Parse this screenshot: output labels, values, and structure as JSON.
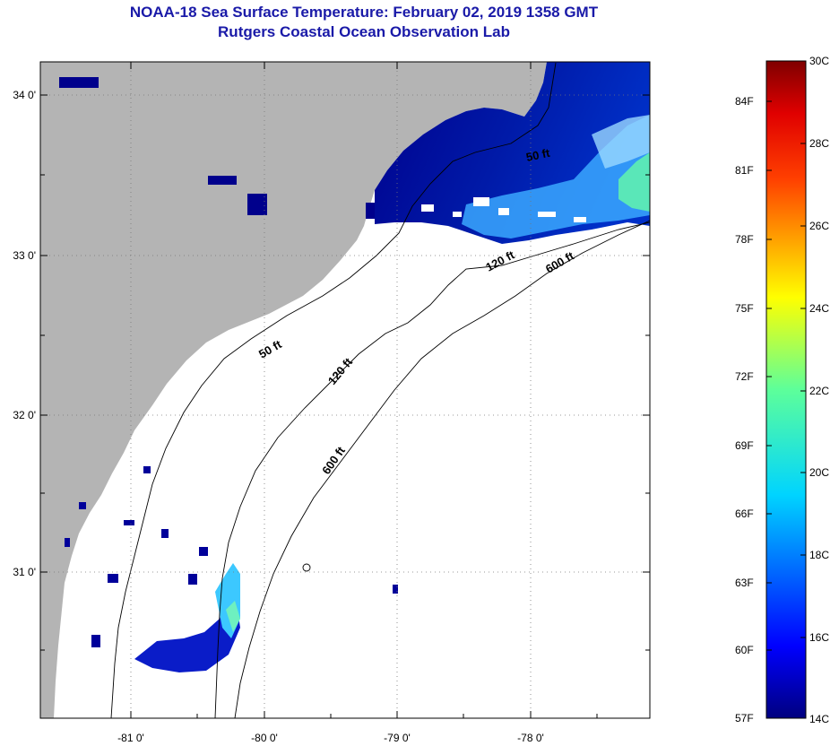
{
  "header": {
    "title": "NOAA-18 Sea Surface Temperature:  February 02, 2019 1358 GMT",
    "subtitle": "Rutgers Coastal Ocean Observation Lab"
  },
  "axes": {
    "lat_labels": [
      "34 0'",
      "33 0'",
      "32 0'",
      "31 0'"
    ],
    "lon_labels": [
      "-81 0'",
      "-80 0'",
      "-79 0'",
      "-78 0'"
    ]
  },
  "contours": {
    "label_50_a": "50 ft",
    "label_50_b": "50 ft",
    "label_120_a": "120 ft",
    "label_120_b": "120 ft",
    "label_600_a": "600 ft",
    "label_600_b": "600 ft"
  },
  "colorbar": {
    "fahrenheit": [
      "84F",
      "81F",
      "78F",
      "75F",
      "72F",
      "69F",
      "66F",
      "63F",
      "60F",
      "57F"
    ],
    "celsius": [
      "30C",
      "28C",
      "26C",
      "24C",
      "22C",
      "20C",
      "18C",
      "16C",
      "14C"
    ],
    "min_c": 14,
    "max_c": 30
  },
  "colors": {
    "land": "#b4b4b4",
    "title": "#1a1aa8",
    "cold": "#00007f",
    "warm": "#7f0000"
  }
}
